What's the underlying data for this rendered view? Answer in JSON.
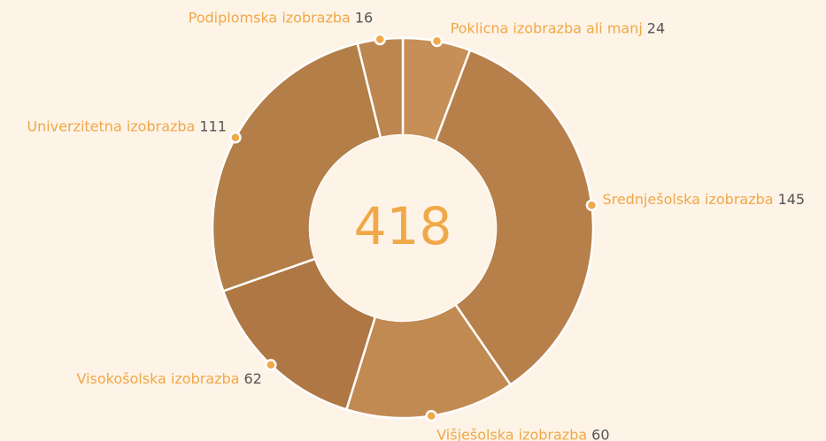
{
  "chart_data": {
    "type": "donut",
    "total": 418,
    "categories": [
      "Poklicna izobrazba ali manj",
      "Srednješolska izobrazba",
      "Višješolska izobrazba",
      "Visokošolska izobrazba",
      "Univerzitetna izobrazba",
      "Podiplomska izobrazba"
    ],
    "values": [
      24,
      145,
      60,
      62,
      111,
      16
    ],
    "colors": [
      "#c58f57",
      "#b7804a",
      "#c18a52",
      "#ae7744",
      "#b47e48",
      "#bd8651"
    ],
    "label_color": "#f0a848",
    "value_color": "#555555"
  }
}
